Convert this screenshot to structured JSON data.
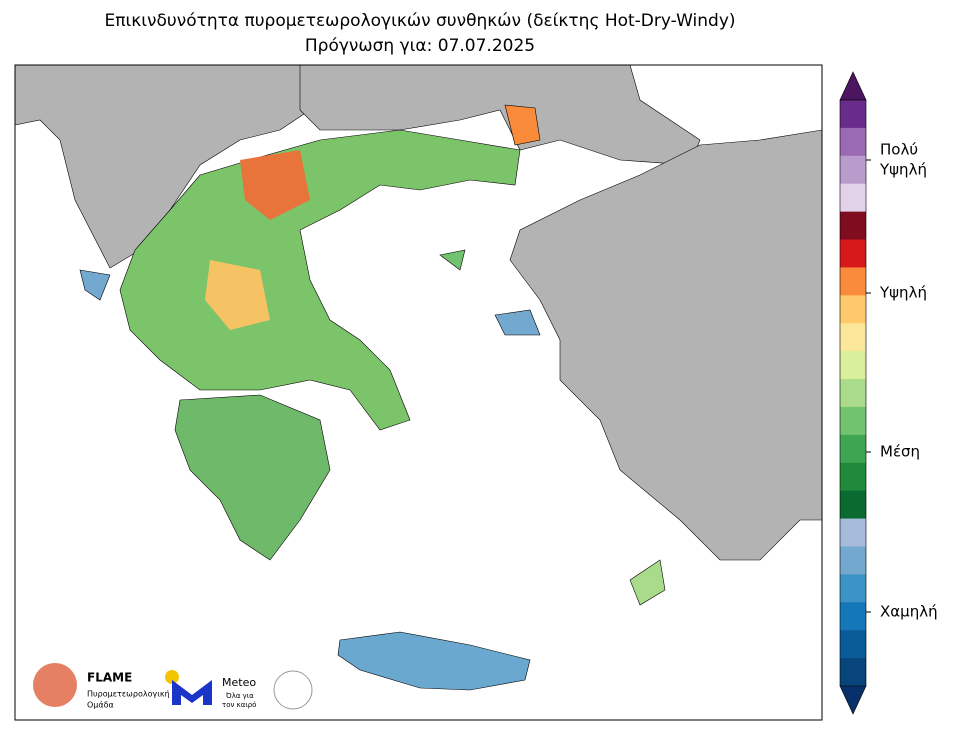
{
  "header": {
    "title": "Επικινδυνότητα πυρομετεωρολογικών συνθηκών (δείκτης Hot-Dry-Windy)",
    "subtitle": "Πρόγνωση για: 07.07.2025"
  },
  "colorbar": {
    "colors": [
      "#6a2c8a",
      "#9a6bb3",
      "#b99ccb",
      "#e2d2ea",
      "#7f0d1f",
      "#d7191c",
      "#f98b3a",
      "#fdc96b",
      "#fbe79a",
      "#d9ef9b",
      "#a9db8a",
      "#72c36f",
      "#3ea653",
      "#1f8a3b",
      "#0b6a30",
      "#a7bcdc",
      "#74a9cf",
      "#3b93c6",
      "#1477b8",
      "#0a5c98",
      "#08457a"
    ],
    "over_color": "#4b1560",
    "under_color": "#08306b",
    "labels": [
      {
        "line1": "Πολύ",
        "line2": "Υψηλή"
      },
      {
        "line1": "Υψηλή"
      },
      {
        "line1": "Μέση"
      },
      {
        "line1": "Χαμηλή"
      }
    ]
  },
  "logos": {
    "flame": {
      "name": "FLAME",
      "line1": "Πυρομετεωρολογική",
      "line2": "Ομάδα"
    },
    "meteo": {
      "name": "Meteo",
      "line1": "Όλα για",
      "line2": "τον καιρό"
    }
  }
}
